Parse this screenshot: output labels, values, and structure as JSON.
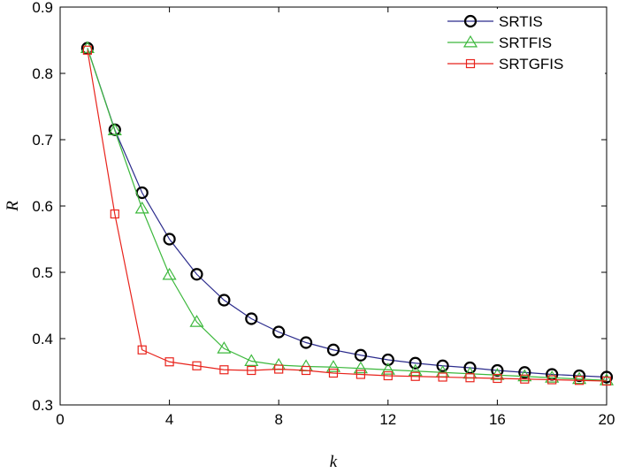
{
  "chart_data": {
    "type": "line",
    "xlabel": "k",
    "ylabel": "R",
    "xlim": [
      0,
      20
    ],
    "ylim": [
      0.3,
      0.9
    ],
    "xticks": [
      0,
      4,
      8,
      12,
      16,
      20
    ],
    "yticks": [
      0.3,
      0.4,
      0.5,
      0.6,
      0.7,
      0.8,
      0.9
    ],
    "xtick_labels": [
      "0",
      "4",
      "8",
      "12",
      "16",
      "20"
    ],
    "ytick_labels": [
      "0.3",
      "0.4",
      "0.5",
      "0.6",
      "0.7",
      "0.8",
      "0.9"
    ],
    "grid": false,
    "legend_position": "top-right",
    "x": [
      1,
      2,
      3,
      4,
      5,
      6,
      7,
      8,
      9,
      10,
      11,
      12,
      13,
      14,
      15,
      16,
      17,
      18,
      19,
      20
    ],
    "series": [
      {
        "name": "SRTIS",
        "color": "#2b2b8c",
        "marker": "circle",
        "values": [
          0.838,
          0.715,
          0.62,
          0.55,
          0.497,
          0.458,
          0.43,
          0.41,
          0.394,
          0.383,
          0.375,
          0.368,
          0.363,
          0.359,
          0.356,
          0.352,
          0.349,
          0.346,
          0.344,
          0.342
        ]
      },
      {
        "name": "SRTFIS",
        "color": "#3cb83c",
        "marker": "triangle",
        "values": [
          0.838,
          0.714,
          0.596,
          0.496,
          0.425,
          0.385,
          0.366,
          0.36,
          0.358,
          0.357,
          0.355,
          0.353,
          0.351,
          0.349,
          0.347,
          0.345,
          0.343,
          0.341,
          0.339,
          0.337
        ]
      },
      {
        "name": "SRTGFIS",
        "color": "#e8231c",
        "marker": "square",
        "values": [
          0.835,
          0.588,
          0.383,
          0.365,
          0.359,
          0.353,
          0.352,
          0.354,
          0.352,
          0.348,
          0.346,
          0.344,
          0.343,
          0.342,
          0.341,
          0.34,
          0.339,
          0.338,
          0.337,
          0.336
        ]
      }
    ]
  }
}
